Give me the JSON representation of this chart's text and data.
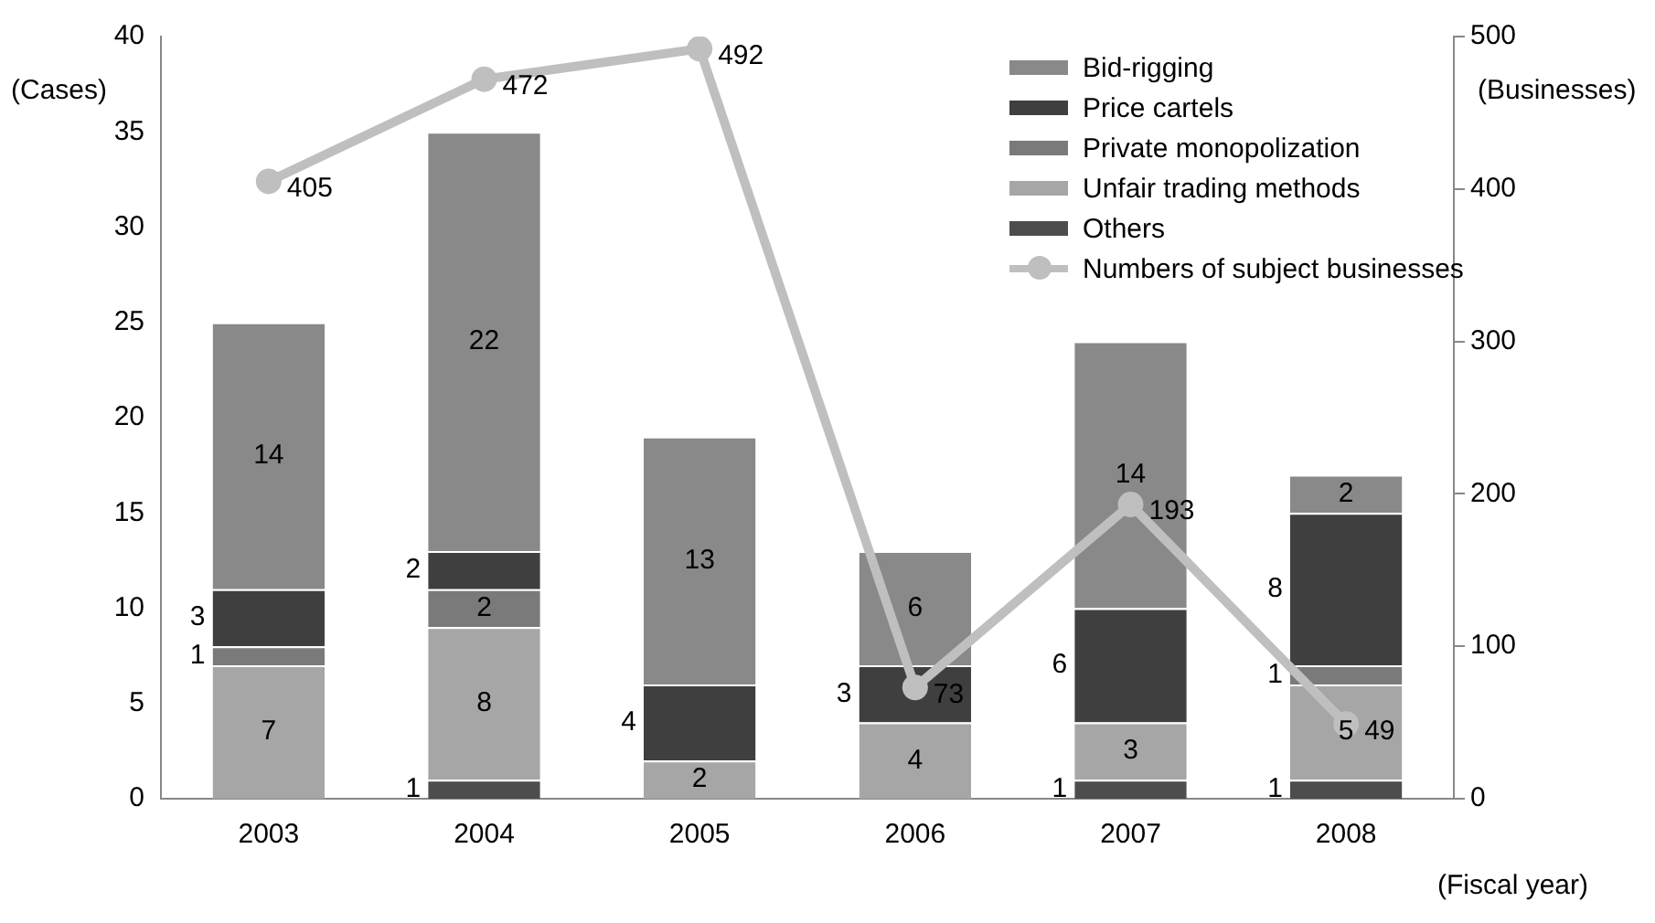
{
  "chart_data": {
    "type": "bar",
    "stacked": true,
    "categories": [
      "2003",
      "2004",
      "2005",
      "2006",
      "2007",
      "2008"
    ],
    "xlabel": "(Fiscal year)",
    "ylabel": "(Cases)",
    "y2label": "(Businesses)",
    "ylim": [
      0,
      40
    ],
    "yticks": [
      0,
      5,
      10,
      15,
      20,
      25,
      30,
      35,
      40
    ],
    "y2lim": [
      0,
      500
    ],
    "y2ticks": [
      0,
      100,
      200,
      300,
      400,
      500
    ],
    "grid": false,
    "legend": "top right",
    "marker": "circle",
    "series": [
      {
        "name": "Others",
        "color": "#4d4d4d",
        "values": [
          0,
          1,
          0,
          0,
          1,
          1
        ],
        "value_labels": [
          null,
          "1",
          null,
          null,
          "1",
          "1"
        ]
      },
      {
        "name": "Unfair trading methods",
        "color": "#a6a6a6",
        "values": [
          7,
          8,
          2,
          4,
          3,
          5
        ],
        "value_labels": [
          "7",
          "8",
          "2",
          "4",
          "3",
          "5"
        ]
      },
      {
        "name": "Private monopolization",
        "color": "#7a7a7a",
        "values": [
          1,
          2,
          0,
          0,
          0,
          1
        ],
        "value_labels": [
          "1",
          "2",
          null,
          null,
          null,
          "1"
        ]
      },
      {
        "name": "Price cartels",
        "color": "#3f3f3f",
        "values": [
          3,
          2,
          4,
          3,
          6,
          8
        ],
        "value_labels": [
          "3",
          "2",
          "4",
          "3",
          "6",
          "8"
        ]
      },
      {
        "name": "Bid-rigging",
        "color": "#898989",
        "values": [
          14,
          22,
          13,
          6,
          14,
          2
        ],
        "value_labels": [
          "14",
          "22",
          "13",
          "6",
          "14",
          "2"
        ]
      },
      {
        "name": "Numbers of subject businesses",
        "type": "line",
        "axis": "y2",
        "color": "#bfbfbf",
        "values": [
          405,
          472,
          492,
          73,
          193,
          49
        ],
        "value_labels": [
          "405",
          "472",
          "492",
          "73",
          "193",
          "49"
        ]
      }
    ]
  }
}
